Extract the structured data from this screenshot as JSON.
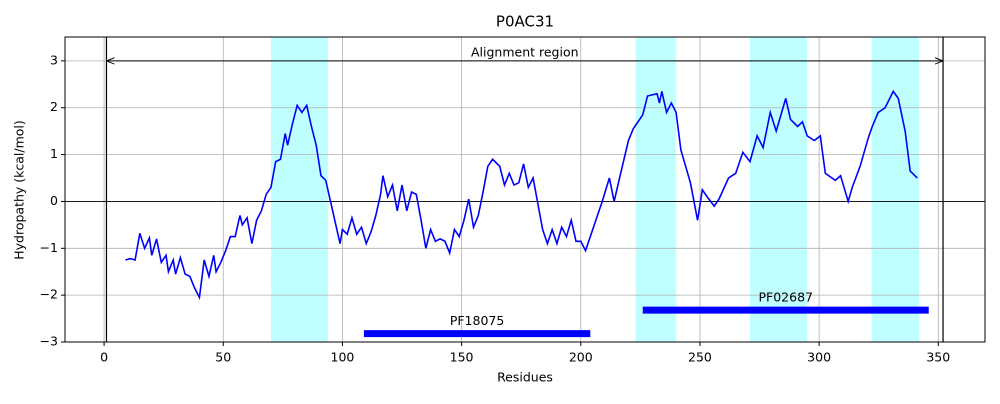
{
  "chart_data": {
    "type": "line",
    "title": "P0AC31",
    "xlabel": "Residues",
    "ylabel": "Hydropathy (kcal/mol)",
    "color": "#0000ff",
    "xlim": [
      -16.4,
      369.6
    ],
    "ylim": [
      -3,
      3.51
    ],
    "xticks": [
      0,
      50,
      100,
      150,
      200,
      250,
      300,
      350
    ],
    "yticks": [
      {
        "value": -3,
        "label": "−3"
      },
      {
        "value": -2,
        "label": "−2"
      },
      {
        "value": -1,
        "label": "−1"
      },
      0,
      1,
      2,
      3
    ],
    "grid": true,
    "hline": 0,
    "shaded_regions": [
      {
        "start": 70,
        "end": 94,
        "color": "#bfffff"
      },
      {
        "start": 223,
        "end": 240,
        "color": "#bfffff"
      },
      {
        "start": 271,
        "end": 295,
        "color": "#bfffff"
      },
      {
        "start": 322,
        "end": 342,
        "color": "#bfffff"
      }
    ],
    "alignment_region": {
      "label": "Alignment region",
      "start": 1,
      "end": 352,
      "y": 3
    },
    "domains": [
      {
        "label": "PF18075",
        "start": 109,
        "end": 204,
        "y": -2.82,
        "color": "#0000ff"
      },
      {
        "label": "PF02687",
        "start": 226,
        "end": 346,
        "y": -2.32,
        "color": "#0000ff"
      }
    ],
    "x": [
      9,
      11,
      13,
      15,
      17,
      19,
      20,
      22,
      24,
      26,
      27,
      29,
      30,
      32,
      34,
      36,
      38,
      40,
      42,
      44,
      46,
      47,
      49,
      51,
      53,
      55,
      57,
      58,
      60,
      62,
      64,
      66,
      68,
      70,
      72,
      74,
      76,
      77,
      79,
      81,
      83,
      85,
      87,
      89,
      91,
      93,
      95,
      97,
      99,
      100,
      102,
      104,
      106,
      108,
      110,
      112,
      114,
      116,
      117,
      119,
      121,
      123,
      125,
      127,
      129,
      131,
      133,
      135,
      137,
      139,
      141,
      143,
      145,
      147,
      149,
      151,
      153,
      155,
      157,
      159,
      161,
      163,
      166,
      168,
      170,
      172,
      174,
      176,
      178,
      180,
      182,
      184,
      186,
      188,
      190,
      192,
      194,
      196,
      198,
      200,
      202,
      206,
      209,
      212,
      214,
      216.5,
      220,
      222,
      226,
      228,
      232,
      233,
      234,
      236,
      238,
      240,
      242,
      246,
      249,
      251,
      253,
      256,
      258,
      262,
      265,
      268,
      271,
      274,
      276.5,
      279.5,
      282,
      286,
      288,
      291,
      293,
      295,
      298,
      300.5,
      302.6,
      306.8,
      309,
      312.2,
      313.9,
      317.2,
      320.6,
      322.3,
      324.8,
      327.7,
      331.1,
      333.2,
      336.1,
      338.2,
      341.2
    ],
    "values": [
      -1.25,
      -1.22,
      -1.25,
      -0.68,
      -1.0,
      -0.78,
      -1.15,
      -0.8,
      -1.3,
      -1.15,
      -1.5,
      -1.25,
      -1.55,
      -1.2,
      -1.55,
      -1.6,
      -1.85,
      -2.05,
      -1.25,
      -1.6,
      -1.15,
      -1.5,
      -1.3,
      -1.05,
      -0.75,
      -0.75,
      -0.3,
      -0.5,
      -0.35,
      -0.9,
      -0.4,
      -0.2,
      0.15,
      0.3,
      0.85,
      0.9,
      1.45,
      1.2,
      1.65,
      2.05,
      1.9,
      2.05,
      1.6,
      1.2,
      0.55,
      0.45,
      0.0,
      -0.45,
      -0.9,
      -0.6,
      -0.7,
      -0.35,
      -0.7,
      -0.55,
      -0.9,
      -0.65,
      -0.3,
      0.15,
      0.55,
      0.1,
      0.35,
      -0.2,
      0.35,
      -0.2,
      0.2,
      0.15,
      -0.4,
      -1.0,
      -0.6,
      -0.85,
      -0.8,
      -0.85,
      -1.1,
      -0.6,
      -0.75,
      -0.4,
      0.05,
      -0.55,
      -0.3,
      0.2,
      0.75,
      0.9,
      0.75,
      0.35,
      0.6,
      0.35,
      0.4,
      0.8,
      0.3,
      0.5,
      -0.05,
      -0.6,
      -0.9,
      -0.6,
      -0.9,
      -0.55,
      -0.75,
      -0.4,
      -0.85,
      -0.85,
      -1.05,
      -0.45,
      0.0,
      0.5,
      0.0,
      0.55,
      1.3,
      1.55,
      1.85,
      2.25,
      2.3,
      2.1,
      2.35,
      1.9,
      2.1,
      1.9,
      1.1,
      0.4,
      -0.4,
      0.25,
      0.1,
      -0.1,
      0.05,
      0.5,
      0.6,
      1.05,
      0.85,
      1.4,
      1.15,
      1.9,
      1.5,
      2.2,
      1.75,
      1.6,
      1.7,
      1.4,
      1.3,
      1.4,
      0.6,
      0.45,
      0.55,
      0.0,
      0.3,
      0.75,
      1.35,
      1.6,
      1.9,
      2.0,
      2.35,
      2.2,
      1.5,
      0.65,
      0.5
    ]
  }
}
